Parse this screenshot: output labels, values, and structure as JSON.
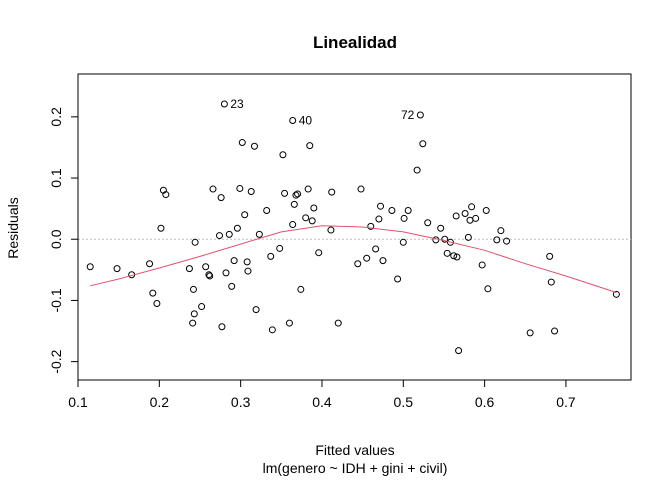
{
  "chart_data": {
    "type": "scatter",
    "title": "Linealidad",
    "xlabel": "Fitted values",
    "subtitle": "lm(genero ~ IDH + gini + civil)",
    "ylabel": "Residuals",
    "xlim": [
      0.1,
      0.78
    ],
    "ylim": [
      -0.23,
      0.27
    ],
    "xticks": [
      0.1,
      0.2,
      0.3,
      0.4,
      0.5,
      0.6,
      0.7
    ],
    "xtick_labels": [
      "0.1",
      "0.2",
      "0.3",
      "0.4",
      "0.5",
      "0.6",
      "0.7"
    ],
    "yticks": [
      -0.2,
      -0.1,
      0.0,
      0.1,
      0.2
    ],
    "ytick_labels": [
      "-0.2",
      "-0.1",
      "0.0",
      "0.1",
      "0.2"
    ],
    "reference_line_y": 0,
    "grid": false,
    "colors": {
      "points": "#000000",
      "smooth": "#df536b",
      "reference": "#bebebe"
    },
    "points": [
      [
        0.115,
        -0.045
      ],
      [
        0.148,
        -0.048
      ],
      [
        0.166,
        -0.058
      ],
      [
        0.188,
        -0.04
      ],
      [
        0.192,
        -0.088
      ],
      [
        0.197,
        -0.105
      ],
      [
        0.202,
        0.018
      ],
      [
        0.205,
        0.08
      ],
      [
        0.208,
        0.073
      ],
      [
        0.237,
        -0.048
      ],
      [
        0.241,
        -0.137
      ],
      [
        0.243,
        -0.122
      ],
      [
        0.242,
        -0.082
      ],
      [
        0.244,
        -0.005
      ],
      [
        0.252,
        -0.11
      ],
      [
        0.257,
        -0.045
      ],
      [
        0.261,
        -0.058
      ],
      [
        0.262,
        -0.06
      ],
      [
        0.266,
        0.082
      ],
      [
        0.274,
        0.006
      ],
      [
        0.276,
        0.068
      ],
      [
        0.277,
        -0.143
      ],
      [
        0.28,
        0.221
      ],
      [
        0.282,
        -0.055
      ],
      [
        0.286,
        0.008
      ],
      [
        0.289,
        -0.077
      ],
      [
        0.292,
        -0.035
      ],
      [
        0.296,
        0.018
      ],
      [
        0.299,
        0.083
      ],
      [
        0.302,
        0.158
      ],
      [
        0.305,
        0.04
      ],
      [
        0.308,
        -0.037
      ],
      [
        0.309,
        -0.052
      ],
      [
        0.313,
        0.078
      ],
      [
        0.317,
        0.152
      ],
      [
        0.319,
        -0.115
      ],
      [
        0.323,
        0.008
      ],
      [
        0.332,
        0.047
      ],
      [
        0.337,
        -0.028
      ],
      [
        0.339,
        -0.148
      ],
      [
        0.348,
        -0.015
      ],
      [
        0.352,
        0.138
      ],
      [
        0.354,
        0.075
      ],
      [
        0.36,
        -0.137
      ],
      [
        0.364,
        0.194
      ],
      [
        0.364,
        0.024
      ],
      [
        0.366,
        0.057
      ],
      [
        0.368,
        0.072
      ],
      [
        0.37,
        0.074
      ],
      [
        0.374,
        -0.082
      ],
      [
        0.38,
        0.035
      ],
      [
        0.383,
        0.082
      ],
      [
        0.385,
        0.153
      ],
      [
        0.388,
        0.03
      ],
      [
        0.39,
        0.051
      ],
      [
        0.396,
        -0.022
      ],
      [
        0.411,
        0.015
      ],
      [
        0.412,
        0.077
      ],
      [
        0.42,
        -0.137
      ],
      [
        0.444,
        -0.04
      ],
      [
        0.448,
        0.082
      ],
      [
        0.455,
        -0.031
      ],
      [
        0.46,
        0.021
      ],
      [
        0.466,
        -0.016
      ],
      [
        0.47,
        0.033
      ],
      [
        0.472,
        0.054
      ],
      [
        0.475,
        -0.035
      ],
      [
        0.486,
        0.047
      ],
      [
        0.493,
        -0.065
      ],
      [
        0.5,
        -0.005
      ],
      [
        0.501,
        0.034
      ],
      [
        0.506,
        0.047
      ],
      [
        0.517,
        0.113
      ],
      [
        0.521,
        0.203
      ],
      [
        0.524,
        0.156
      ],
      [
        0.53,
        0.027
      ],
      [
        0.54,
        -0.001
      ],
      [
        0.546,
        0.018
      ],
      [
        0.551,
        0.0
      ],
      [
        0.554,
        -0.023
      ],
      [
        0.558,
        -0.005
      ],
      [
        0.562,
        -0.027
      ],
      [
        0.566,
        -0.029
      ],
      [
        0.565,
        0.038
      ],
      [
        0.568,
        -0.182
      ],
      [
        0.576,
        0.042
      ],
      [
        0.58,
        0.003
      ],
      [
        0.582,
        0.031
      ],
      [
        0.584,
        0.053
      ],
      [
        0.589,
        0.034
      ],
      [
        0.597,
        -0.042
      ],
      [
        0.602,
        0.047
      ],
      [
        0.604,
        -0.081
      ],
      [
        0.615,
        -0.001
      ],
      [
        0.62,
        0.014
      ],
      [
        0.627,
        -0.003
      ],
      [
        0.656,
        -0.153
      ],
      [
        0.68,
        -0.028
      ],
      [
        0.682,
        -0.07
      ],
      [
        0.686,
        -0.15
      ],
      [
        0.762,
        -0.09
      ]
    ],
    "point_labels": [
      {
        "text": "23",
        "x": 0.28,
        "y": 0.221,
        "side": "right"
      },
      {
        "text": "40",
        "x": 0.364,
        "y": 0.194,
        "side": "right"
      },
      {
        "text": "72",
        "x": 0.521,
        "y": 0.203,
        "side": "left"
      }
    ],
    "smooth_line": [
      [
        0.115,
        -0.076
      ],
      [
        0.15,
        -0.065
      ],
      [
        0.2,
        -0.047
      ],
      [
        0.25,
        -0.028
      ],
      [
        0.3,
        -0.008
      ],
      [
        0.35,
        0.012
      ],
      [
        0.4,
        0.022
      ],
      [
        0.45,
        0.02
      ],
      [
        0.5,
        0.012
      ],
      [
        0.55,
        -0.002
      ],
      [
        0.6,
        -0.018
      ],
      [
        0.65,
        -0.04
      ],
      [
        0.7,
        -0.06
      ],
      [
        0.762,
        -0.087
      ]
    ]
  }
}
